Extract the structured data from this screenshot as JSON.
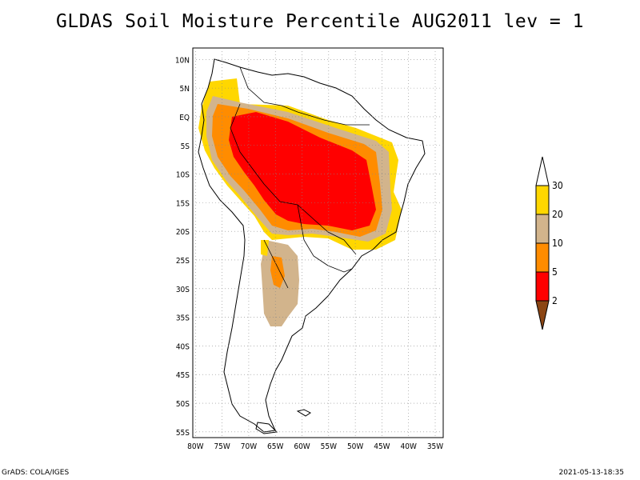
{
  "title": "GLDAS Soil Moisture Percentile AUG2011 lev = 1",
  "footer_left": "GrADS: COLA/IGES",
  "footer_right": "2021-05-13-18:35",
  "map": {
    "projection": "latlon",
    "lon_range": [
      -80,
      -33
    ],
    "lat_range": [
      -56,
      12
    ],
    "lon_ticks": [
      "80W",
      "75W",
      "70W",
      "65W",
      "60W",
      "55W",
      "50W",
      "45W",
      "40W",
      "35W"
    ],
    "lat_ticks": [
      "10N",
      "5N",
      "EQ",
      "5S",
      "10S",
      "15S",
      "20S",
      "25S",
      "30S",
      "35S",
      "40S",
      "45S",
      "50S",
      "55S"
    ],
    "grid": "dotted"
  },
  "colorbar": {
    "labels": [
      "2",
      "5",
      "10",
      "20",
      "30"
    ],
    "colors": [
      "#8b4513",
      "#ff0000",
      "#ff8c00",
      "#d2b48c",
      "#ffd700",
      "#ffffff"
    ]
  }
}
